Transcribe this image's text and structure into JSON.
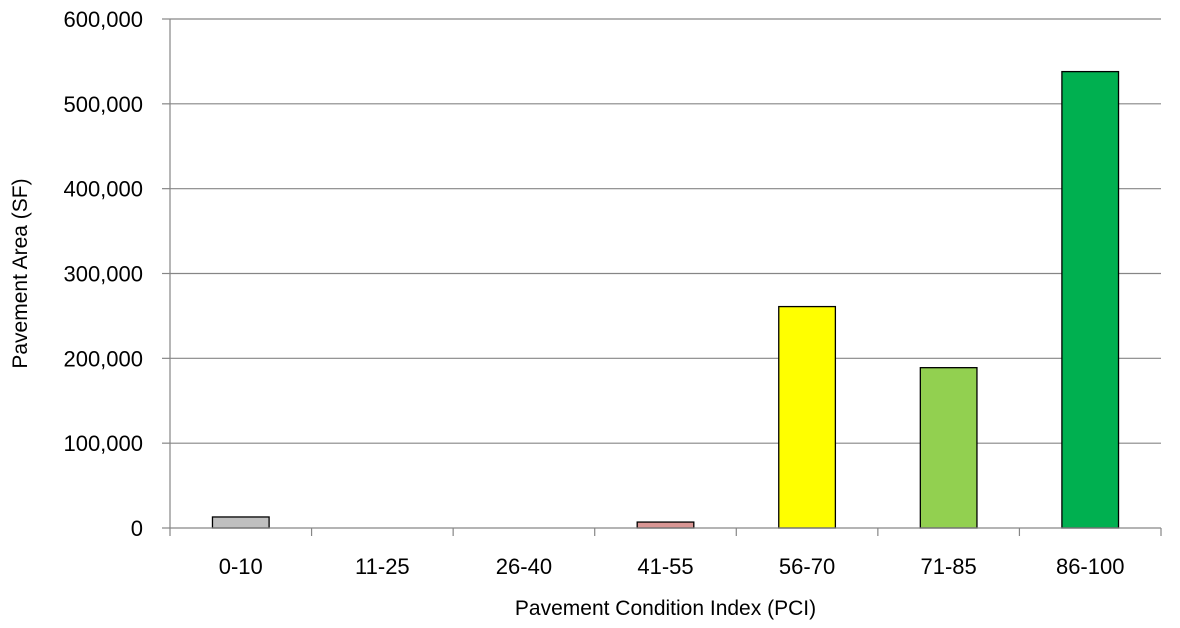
{
  "chart_data": {
    "type": "bar",
    "title": "",
    "xlabel": "Pavement Condition Index (PCI)",
    "ylabel": "Pavement Area (SF)",
    "categories": [
      "0-10",
      "11-25",
      "26-40",
      "41-55",
      "56-70",
      "71-85",
      "86-100"
    ],
    "values": [
      13000,
      0,
      0,
      7000,
      261000,
      189000,
      538000
    ],
    "colors": [
      "#bfbfbf",
      "#ff0000",
      "#ff6a00",
      "#d99694",
      "#ffff00",
      "#92d050",
      "#00b050"
    ],
    "ylim": [
      0,
      600000
    ],
    "yticks": [
      0,
      100000,
      200000,
      300000,
      400000,
      500000,
      600000
    ],
    "ytick_labels": [
      "0",
      "100,000",
      "200,000",
      "300,000",
      "400,000",
      "500,000",
      "600,000"
    ],
    "grid": true,
    "legend": "none"
  }
}
